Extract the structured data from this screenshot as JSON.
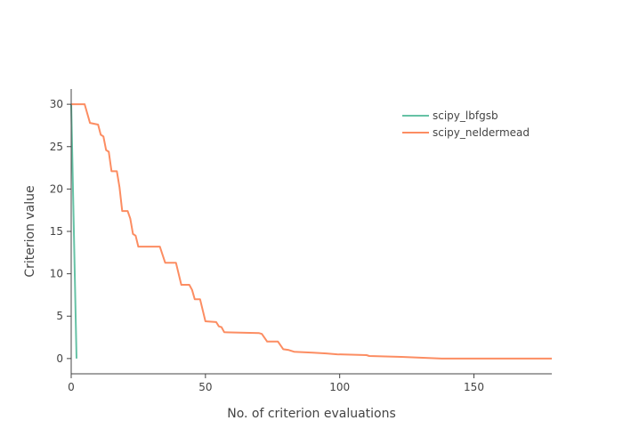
{
  "chart_data": {
    "type": "line",
    "title": "",
    "xlabel": "No. of criterion evaluations",
    "ylabel": "Criterion value",
    "xlim": [
      0,
      179
    ],
    "ylim": [
      -1.8,
      31.8
    ],
    "x_ticks": [
      0,
      50,
      100,
      150
    ],
    "y_ticks": [
      0,
      5,
      10,
      15,
      20,
      25,
      30
    ],
    "grid": false,
    "legend_position": "top-right",
    "series": [
      {
        "name": "scipy_lbfgsb",
        "color": "#66c2a5",
        "x": [
          0,
          1,
          2
        ],
        "y": [
          30,
          15,
          0
        ]
      },
      {
        "name": "scipy_neldermead",
        "color": "#fc8d62",
        "x": [
          0,
          5,
          7,
          10,
          11,
          12,
          13,
          14,
          15,
          17,
          18,
          19,
          21,
          22,
          23,
          24,
          25,
          33,
          35,
          39,
          41,
          44,
          45,
          46,
          48,
          50,
          54,
          55,
          56,
          57,
          70,
          71,
          73,
          77,
          79,
          81,
          83,
          90,
          95,
          99,
          110,
          111,
          123,
          130,
          138,
          179
        ],
        "y": [
          30,
          30,
          27.8,
          27.6,
          26.4,
          26.2,
          24.6,
          24.4,
          22.1,
          22.1,
          20.2,
          17.4,
          17.4,
          16.5,
          14.7,
          14.5,
          13.2,
          13.2,
          11.3,
          11.3,
          8.7,
          8.7,
          8.1,
          7.0,
          7.0,
          4.4,
          4.3,
          3.8,
          3.7,
          3.1,
          3.0,
          2.9,
          2.0,
          2.0,
          1.1,
          1.0,
          0.8,
          0.7,
          0.6,
          0.5,
          0.4,
          0.3,
          0.2,
          0.1,
          0.0,
          0.0
        ]
      }
    ]
  }
}
